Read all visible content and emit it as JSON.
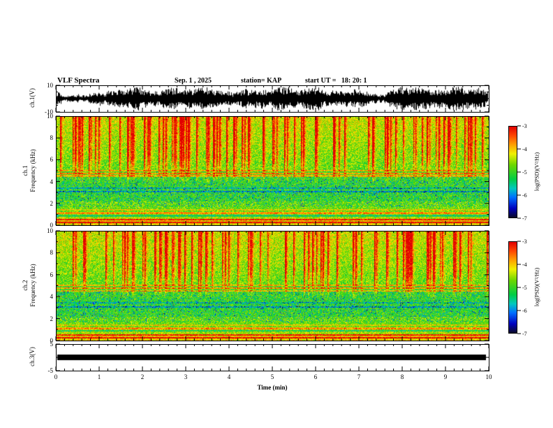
{
  "header": {
    "title": "VLF Spectra",
    "date": "Sep. 1 , 2025",
    "station": "station= KAP",
    "start_ut": "start UT =   18: 20: 1"
  },
  "panels": {
    "ch1_wave": {
      "label": "ch.1(V)",
      "ytop": "10",
      "ybottom": "-10"
    },
    "ch1_spec": {
      "channel": "ch.1",
      "axis": "Frequency (kHz)",
      "yticks": [
        "10",
        "8",
        "6",
        "4",
        "2",
        "0"
      ]
    },
    "ch2_spec": {
      "channel": "ch.2",
      "axis": "Frequency (kHz)",
      "yticks": [
        "10",
        "8",
        "6",
        "4",
        "2",
        "0"
      ]
    },
    "ch3_wave": {
      "label": "ch.3(V)",
      "ytop": "5",
      "ybottom": "-5"
    }
  },
  "xaxis": {
    "label": "Time (min)",
    "ticks": [
      "0",
      "1",
      "2",
      "3",
      "4",
      "5",
      "6",
      "7",
      "8",
      "9",
      "10"
    ]
  },
  "colorbars": {
    "label": "log(PSD)(V²/Hz)",
    "ticks": [
      "-3",
      "-4",
      "-5",
      "-6",
      "-7"
    ]
  },
  "chart_data": {
    "type": "heatmap",
    "title": "VLF Spectra",
    "date": "Sep. 1 , 2025",
    "station": "KAP",
    "start_ut": "18:20:1",
    "xlabel": "Time (min)",
    "x_range_min": [
      0,
      10
    ],
    "x_ticks": [
      0,
      1,
      2,
      3,
      4,
      5,
      6,
      7,
      8,
      9,
      10
    ],
    "panels": [
      {
        "name": "ch.1(V)",
        "type": "line",
        "y_range_volts": [
          -10,
          10
        ],
        "description": "Broadband noisy waveform filling roughly ±8 V across the full 10 minutes"
      },
      {
        "name": "ch.1 spectrogram",
        "type": "heatmap",
        "freq_range_khz": [
          0,
          10
        ],
        "freq_ticks": [
          0,
          2,
          4,
          6,
          8,
          10
        ],
        "psd_log_range": [
          -7,
          -3
        ],
        "features": [
          "dense red vertical impulsive streaks from ~4 kHz up to 10 kHz (sferics)",
          "green background between 2 and 6 kHz with scattered cyan/blue patches",
          "bright yellow-orange bands below ~1.5 kHz",
          "thin yellow horizontal interference lines near 4.5-5 kHz",
          "dark horizontal lines near 3-3.5 kHz"
        ]
      },
      {
        "name": "ch.2 spectrogram",
        "type": "heatmap",
        "freq_range_khz": [
          0,
          10
        ],
        "freq_ticks": [
          0,
          2,
          4,
          6,
          8,
          10
        ],
        "psd_log_range": [
          -7,
          -3
        ],
        "features": [
          "same structure as ch.1: red streaks above ~4 kHz, green mid-band, yellow-orange low-frequency bands, horizontal interference lines"
        ]
      },
      {
        "name": "ch.3(V)",
        "type": "line",
        "y_range_volts": [
          -5,
          5
        ],
        "description": "Saturated flat thick black trace near 0 V for the whole record"
      }
    ],
    "colorbar": {
      "label": "log(PSD)(V²/Hz)",
      "ticks": [
        -3,
        -4,
        -5,
        -6,
        -7
      ],
      "colors_top_to_bottom": [
        "#e10000",
        "#ffa000",
        "#f0f000",
        "#00cd46",
        "#006eff",
        "#0000be",
        "#0a0a28"
      ]
    }
  }
}
